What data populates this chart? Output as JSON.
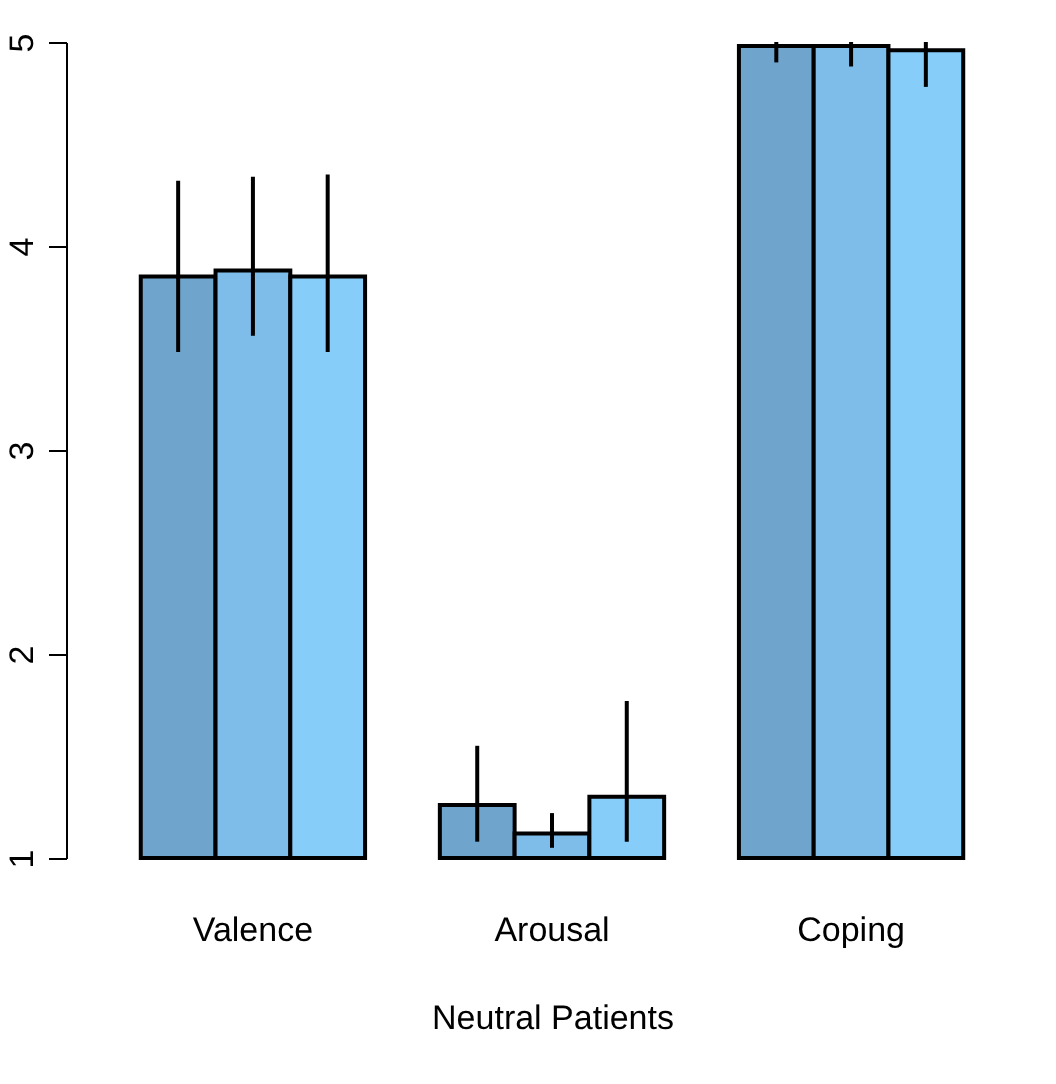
{
  "chart_data": {
    "type": "bar",
    "xlabel": "Neutral Patients",
    "categories": [
      "Valence",
      "Arousal",
      "Coping"
    ],
    "series": [
      {
        "color": "#6fa5cd",
        "values": [
          3.85,
          1.26,
          4.98
        ],
        "errors": [
          [
            3.48,
            4.32
          ],
          [
            1.08,
            1.55
          ],
          [
            4.9,
            5.0
          ]
        ]
      },
      {
        "color": "#7ebce9",
        "values": [
          3.88,
          1.12,
          4.98
        ],
        "errors": [
          [
            3.56,
            4.34
          ],
          [
            1.05,
            1.22
          ],
          [
            4.88,
            5.0
          ]
        ]
      },
      {
        "color": "#87cdfa",
        "values": [
          3.85,
          1.3,
          4.96
        ],
        "errors": [
          [
            3.48,
            4.35
          ],
          [
            1.08,
            1.77
          ],
          [
            4.78,
            5.0
          ]
        ]
      }
    ],
    "ylim": [
      1,
      5
    ],
    "yticks": [
      1,
      2,
      3,
      4,
      5
    ],
    "grid": false,
    "legend": false
  }
}
